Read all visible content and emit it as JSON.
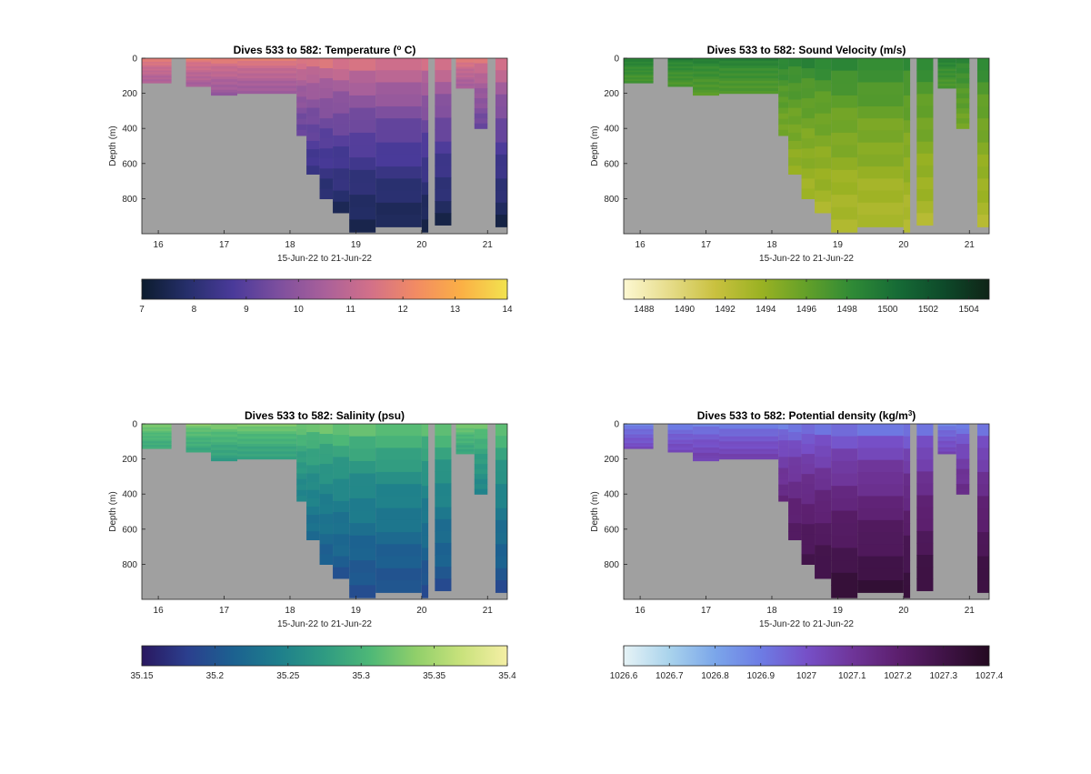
{
  "chart_data": [
    {
      "type": "heatmap",
      "title": "Dives 533 to 582: Temperature (",
      "title_sup": "o",
      "title_tail": " C)",
      "xlabel": "15-Jun-22 to 21-Jun-22",
      "ylabel": "Depth (m)",
      "xlim": [
        15.75,
        21.3
      ],
      "ylim": [
        0,
        1000
      ],
      "xticks": [
        16,
        17,
        18,
        19,
        20,
        21
      ],
      "yticks": [
        0,
        200,
        400,
        600,
        800
      ],
      "colormap": [
        "#0c1c2e",
        "#262f6b",
        "#4a3a9a",
        "#7d4f9e",
        "#a9609a",
        "#d27089",
        "#f28b63",
        "#fbb045",
        "#f2e34f"
      ],
      "clim": [
        7,
        14
      ],
      "colorbar_ticks": [
        "7",
        "8",
        "9",
        "10",
        "11",
        "12",
        "13",
        "14"
      ],
      "surface_value": 12.2,
      "deep_value": 7.3,
      "nodata_color": "#a0a0a0",
      "profiles": [
        {
          "t0": 15.75,
          "t1": 16.2,
          "max_depth": 140
        },
        {
          "t0": 16.2,
          "t1": 16.42,
          "max_depth": 0
        },
        {
          "t0": 16.42,
          "t1": 16.8,
          "max_depth": 160
        },
        {
          "t0": 16.8,
          "t1": 17.2,
          "max_depth": 210
        },
        {
          "t0": 17.2,
          "t1": 18.1,
          "max_depth": 200
        },
        {
          "t0": 18.1,
          "t1": 18.25,
          "max_depth": 440
        },
        {
          "t0": 18.25,
          "t1": 18.45,
          "max_depth": 660
        },
        {
          "t0": 18.45,
          "t1": 18.65,
          "max_depth": 800
        },
        {
          "t0": 18.65,
          "t1": 18.9,
          "max_depth": 880
        },
        {
          "t0": 18.9,
          "t1": 19.3,
          "max_depth": 990
        },
        {
          "t0": 19.3,
          "t1": 20.0,
          "max_depth": 960
        },
        {
          "t0": 20.0,
          "t1": 20.1,
          "max_depth": 990
        },
        {
          "t0": 20.1,
          "t1": 20.2,
          "max_depth": 0
        },
        {
          "t0": 20.2,
          "t1": 20.45,
          "max_depth": 950
        },
        {
          "t0": 20.45,
          "t1": 20.52,
          "max_depth": 0
        },
        {
          "t0": 20.52,
          "t1": 20.8,
          "max_depth": 170
        },
        {
          "t0": 20.8,
          "t1": 21.0,
          "max_depth": 400
        },
        {
          "t0": 21.0,
          "t1": 21.12,
          "max_depth": 0
        },
        {
          "t0": 21.12,
          "t1": 21.3,
          "max_depth": 960
        }
      ]
    },
    {
      "type": "heatmap",
      "title": "Dives 533 to 582: Sound Velocity (m/s)",
      "title_sup": "",
      "title_tail": "",
      "xlabel": "15-Jun-22 to 21-Jun-22",
      "ylabel": "Depth (m)",
      "xlim": [
        15.75,
        21.3
      ],
      "ylim": [
        0,
        1000
      ],
      "xticks": [
        16,
        17,
        18,
        19,
        20,
        21
      ],
      "yticks": [
        0,
        200,
        400,
        600,
        800
      ],
      "colormap": [
        "#fdf8d2",
        "#e6dc8a",
        "#c9c13f",
        "#9bb223",
        "#63a029",
        "#2f8a36",
        "#166b36",
        "#0e4a2a",
        "#0f2417"
      ],
      "clim": [
        1487,
        1505
      ],
      "colorbar_ticks": [
        "1488",
        "1490",
        "1492",
        "1494",
        "1496",
        "1498",
        "1500",
        "1502",
        "1504"
      ],
      "surface_value": 1499.5,
      "deep_value": 1492.5,
      "nodata_color": "#a0a0a0",
      "profiles": [
        {
          "t0": 15.75,
          "t1": 16.2,
          "max_depth": 140
        },
        {
          "t0": 16.2,
          "t1": 16.42,
          "max_depth": 0
        },
        {
          "t0": 16.42,
          "t1": 16.8,
          "max_depth": 160
        },
        {
          "t0": 16.8,
          "t1": 17.2,
          "max_depth": 210
        },
        {
          "t0": 17.2,
          "t1": 18.1,
          "max_depth": 200
        },
        {
          "t0": 18.1,
          "t1": 18.25,
          "max_depth": 440
        },
        {
          "t0": 18.25,
          "t1": 18.45,
          "max_depth": 660
        },
        {
          "t0": 18.45,
          "t1": 18.65,
          "max_depth": 800
        },
        {
          "t0": 18.65,
          "t1": 18.9,
          "max_depth": 880
        },
        {
          "t0": 18.9,
          "t1": 19.3,
          "max_depth": 990
        },
        {
          "t0": 19.3,
          "t1": 20.0,
          "max_depth": 960
        },
        {
          "t0": 20.0,
          "t1": 20.1,
          "max_depth": 990
        },
        {
          "t0": 20.1,
          "t1": 20.2,
          "max_depth": 0
        },
        {
          "t0": 20.2,
          "t1": 20.45,
          "max_depth": 950
        },
        {
          "t0": 20.45,
          "t1": 20.52,
          "max_depth": 0
        },
        {
          "t0": 20.52,
          "t1": 20.8,
          "max_depth": 170
        },
        {
          "t0": 20.8,
          "t1": 21.0,
          "max_depth": 400
        },
        {
          "t0": 21.0,
          "t1": 21.12,
          "max_depth": 0
        },
        {
          "t0": 21.12,
          "t1": 21.3,
          "max_depth": 960
        }
      ]
    },
    {
      "type": "heatmap",
      "title": "Dives 533 to 582: Salinity (psu)",
      "title_sup": "",
      "title_tail": "",
      "xlabel": "15-Jun-22 to 21-Jun-22",
      "ylabel": "Depth (m)",
      "xlim": [
        15.75,
        21.3
      ],
      "ylim": [
        0,
        1000
      ],
      "xticks": [
        16,
        17,
        18,
        19,
        20,
        21
      ],
      "yticks": [
        0,
        200,
        400,
        600,
        800
      ],
      "colormap": [
        "#2a1860",
        "#2b3f8e",
        "#1c6190",
        "#1e7f8c",
        "#2f9b82",
        "#4eb877",
        "#90cf6a",
        "#c9e27c",
        "#f5efa5"
      ],
      "clim": [
        35.15,
        35.4
      ],
      "colorbar_ticks": [
        "35.15",
        "35.2",
        "35.25",
        "35.3",
        "35.35",
        "35.4"
      ],
      "surface_value": 35.34,
      "deep_value": 35.19,
      "nodata_color": "#a0a0a0",
      "profiles": [
        {
          "t0": 15.75,
          "t1": 16.2,
          "max_depth": 140
        },
        {
          "t0": 16.2,
          "t1": 16.42,
          "max_depth": 0
        },
        {
          "t0": 16.42,
          "t1": 16.8,
          "max_depth": 160
        },
        {
          "t0": 16.8,
          "t1": 17.2,
          "max_depth": 210
        },
        {
          "t0": 17.2,
          "t1": 18.1,
          "max_depth": 200
        },
        {
          "t0": 18.1,
          "t1": 18.25,
          "max_depth": 440
        },
        {
          "t0": 18.25,
          "t1": 18.45,
          "max_depth": 660
        },
        {
          "t0": 18.45,
          "t1": 18.65,
          "max_depth": 800
        },
        {
          "t0": 18.65,
          "t1": 18.9,
          "max_depth": 880
        },
        {
          "t0": 18.9,
          "t1": 19.3,
          "max_depth": 990
        },
        {
          "t0": 19.3,
          "t1": 20.0,
          "max_depth": 960
        },
        {
          "t0": 20.0,
          "t1": 20.1,
          "max_depth": 990
        },
        {
          "t0": 20.1,
          "t1": 20.2,
          "max_depth": 0
        },
        {
          "t0": 20.2,
          "t1": 20.45,
          "max_depth": 950
        },
        {
          "t0": 20.45,
          "t1": 20.52,
          "max_depth": 0
        },
        {
          "t0": 20.52,
          "t1": 20.8,
          "max_depth": 170
        },
        {
          "t0": 20.8,
          "t1": 21.0,
          "max_depth": 400
        },
        {
          "t0": 21.0,
          "t1": 21.12,
          "max_depth": 0
        },
        {
          "t0": 21.12,
          "t1": 21.3,
          "max_depth": 960
        }
      ]
    },
    {
      "type": "heatmap",
      "title": "Dives 533 to 582: Potential density (kg/m",
      "title_sup": "3",
      "title_tail": ")",
      "xlabel": "15-Jun-22 to 21-Jun-22",
      "ylabel": "Depth (m)",
      "xlim": [
        15.75,
        21.3
      ],
      "ylim": [
        0,
        1000
      ],
      "xticks": [
        16,
        17,
        18,
        19,
        20,
        21
      ],
      "yticks": [
        0,
        200,
        400,
        600,
        800
      ],
      "colormap": [
        "#e6f3f6",
        "#a9d3ec",
        "#7ba6ea",
        "#6d7ce4",
        "#7650c8",
        "#6f3599",
        "#5c1f6e",
        "#401347",
        "#240a21"
      ],
      "clim": [
        1026.6,
        1027.4
      ],
      "colorbar_ticks": [
        "1026.6",
        "1026.7",
        "1026.8",
        "1026.9",
        "1027",
        "1027.1",
        "1027.2",
        "1027.3",
        "1027.4"
      ],
      "surface_value": 1026.85,
      "deep_value": 1027.35,
      "nodata_color": "#a0a0a0",
      "profiles": [
        {
          "t0": 15.75,
          "t1": 16.2,
          "max_depth": 140
        },
        {
          "t0": 16.2,
          "t1": 16.42,
          "max_depth": 0
        },
        {
          "t0": 16.42,
          "t1": 16.8,
          "max_depth": 160
        },
        {
          "t0": 16.8,
          "t1": 17.2,
          "max_depth": 210
        },
        {
          "t0": 17.2,
          "t1": 18.1,
          "max_depth": 200
        },
        {
          "t0": 18.1,
          "t1": 18.25,
          "max_depth": 440
        },
        {
          "t0": 18.25,
          "t1": 18.45,
          "max_depth": 660
        },
        {
          "t0": 18.45,
          "t1": 18.65,
          "max_depth": 800
        },
        {
          "t0": 18.65,
          "t1": 18.9,
          "max_depth": 880
        },
        {
          "t0": 18.9,
          "t1": 19.3,
          "max_depth": 990
        },
        {
          "t0": 19.3,
          "t1": 20.0,
          "max_depth": 960
        },
        {
          "t0": 20.0,
          "t1": 20.1,
          "max_depth": 990
        },
        {
          "t0": 20.1,
          "t1": 20.2,
          "max_depth": 0
        },
        {
          "t0": 20.2,
          "t1": 20.45,
          "max_depth": 950
        },
        {
          "t0": 20.45,
          "t1": 20.52,
          "max_depth": 0
        },
        {
          "t0": 20.52,
          "t1": 20.8,
          "max_depth": 170
        },
        {
          "t0": 20.8,
          "t1": 21.0,
          "max_depth": 400
        },
        {
          "t0": 21.0,
          "t1": 21.12,
          "max_depth": 0
        },
        {
          "t0": 21.12,
          "t1": 21.3,
          "max_depth": 960
        }
      ]
    }
  ]
}
